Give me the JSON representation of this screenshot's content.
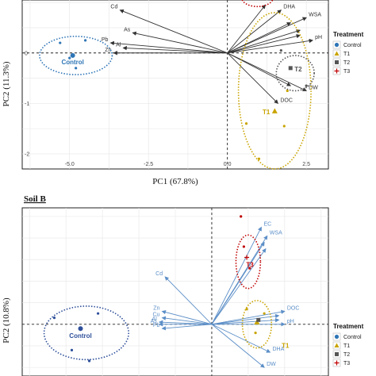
{
  "chart_data": [
    {
      "type": "scatter",
      "panel": "top",
      "title": "",
      "xlabel": "PC1 (67.8%)",
      "ylabel": "PC2 (11.3%)",
      "xlim": [
        -6.5,
        3.2
      ],
      "ylim": [
        -2.3,
        1.05
      ],
      "xticks": [
        -5.0,
        -2.5,
        0.0,
        2.5
      ],
      "xtick_labels": [
        "-5.0",
        "-2.5",
        "0.0",
        "2.5"
      ],
      "yticks": [
        -2,
        -1,
        0
      ],
      "ytick_labels": [
        "-2",
        "-1",
        "0"
      ],
      "grid": true,
      "legend_position": "right",
      "loadings_color": "#333333",
      "loadings": [
        {
          "name": "Cd",
          "x": -3.4,
          "y": 0.85
        },
        {
          "name": "As",
          "x": -3.0,
          "y": 0.4
        },
        {
          "name": "Pb",
          "x": -3.7,
          "y": 0.2
        },
        {
          "name": "Al",
          "x": -3.3,
          "y": 0.1
        },
        {
          "name": "Zn",
          "x": -3.6,
          "y": 0.0
        },
        {
          "name": "DHA",
          "x": 1.7,
          "y": 0.85
        },
        {
          "name": "WSA",
          "x": 2.5,
          "y": 0.7
        },
        {
          "name": "pH",
          "x": 2.7,
          "y": 0.25
        },
        {
          "name": "DW",
          "x": 2.5,
          "y": -0.75
        },
        {
          "name": "DOC",
          "x": 1.6,
          "y": -1.0
        }
      ],
      "extra_vectors": [
        {
          "x": 1.2,
          "y": 0.95
        },
        {
          "x": 2.0,
          "y": 0.6
        },
        {
          "x": 2.3,
          "y": 0.45
        },
        {
          "x": 2.3,
          "y": 0.35
        },
        {
          "x": 2.0,
          "y": -0.65
        }
      ],
      "groups": [
        {
          "name": "Control",
          "label": "Control",
          "color": "#2e75b6",
          "centroid": [
            -4.9,
            -0.05
          ],
          "points": [
            [
              -5.3,
              0.2
            ],
            [
              -4.5,
              0.25
            ],
            [
              -5.0,
              -0.1
            ],
            [
              -4.8,
              -0.3
            ]
          ],
          "ellipse": {
            "cx": -4.8,
            "cy": -0.05,
            "rx": 1.15,
            "ry": 0.38
          }
        },
        {
          "name": "T1",
          "label": "T1",
          "color": "#c9a400",
          "centroid": [
            1.5,
            -1.15
          ],
          "points": [
            [
              1.9,
              -0.75
            ],
            [
              1.8,
              -1.45
            ],
            [
              0.6,
              -1.4
            ],
            [
              1.0,
              -2.1
            ]
          ],
          "ellipse": {
            "cx": 1.5,
            "cy": -0.75,
            "rx": 1.15,
            "ry": 1.55
          }
        },
        {
          "name": "T2",
          "label": "T2",
          "color": "#555555",
          "centroid": [
            2.0,
            -0.3
          ],
          "points": [
            [
              2.5,
              -0.65
            ],
            [
              1.7,
              0.05
            ]
          ],
          "ellipse": {
            "cx": 2.15,
            "cy": -0.4,
            "rx": 0.6,
            "ry": 0.35
          }
        },
        {
          "name": "T3",
          "label": "",
          "color": "#c00000",
          "centroid": [
            1.0,
            1.1
          ],
          "points": [],
          "ellipse": {
            "cx": 0.95,
            "cy": 1.1,
            "rx": 0.5,
            "ry": 0.18
          }
        }
      ]
    },
    {
      "type": "scatter",
      "panel": "bottom",
      "title": "Soil B",
      "xlabel": "",
      "ylabel": "PC2 (10.8%)",
      "xlim": [
        -6.5,
        4.0
      ],
      "ylim": [
        -1.2,
        2.7
      ],
      "grid": true,
      "legend_position": "right",
      "loadings_color": "#5b8ec7",
      "loadings": [
        {
          "name": "EC",
          "x": 1.7,
          "y": 2.25
        },
        {
          "name": "WSA",
          "x": 1.9,
          "y": 2.05
        },
        {
          "name": "Cd",
          "x": -1.6,
          "y": 1.1
        },
        {
          "name": "Zn",
          "x": -1.7,
          "y": 0.3
        },
        {
          "name": "Cu",
          "x": -1.7,
          "y": 0.15
        },
        {
          "name": "Al",
          "x": -1.8,
          "y": 0.05
        },
        {
          "name": "As",
          "x": -1.8,
          "y": 0.0
        },
        {
          "name": "Pb",
          "x": -1.7,
          "y": -0.1
        },
        {
          "name": "DOC",
          "x": 2.5,
          "y": 0.3
        },
        {
          "name": "pH",
          "x": 2.5,
          "y": 0.0
        },
        {
          "name": "DHA",
          "x": 2.0,
          "y": -0.65
        },
        {
          "name": "DW",
          "x": 1.8,
          "y": -1.0
        }
      ],
      "extra_vectors": [
        {
          "x": 1.8,
          "y": 1.9
        },
        {
          "x": 1.85,
          "y": 1.75
        },
        {
          "x": 2.3,
          "y": 0.2
        },
        {
          "x": 2.3,
          "y": 0.1
        }
      ],
      "groups": [
        {
          "name": "Control",
          "label": "Control",
          "color": "#2e4f9a",
          "centroid": [
            -4.5,
            -0.1
          ],
          "points": [
            [
              -5.4,
              0.15
            ],
            [
              -3.9,
              0.25
            ],
            [
              -4.2,
              -0.85
            ],
            [
              -4.8,
              -0.6
            ]
          ],
          "ellipse": {
            "cx": -4.3,
            "cy": -0.2,
            "rx": 1.45,
            "ry": 0.62
          }
        },
        {
          "name": "T1",
          "label": "T1",
          "color": "#c9a400",
          "centroid": [
            1.55,
            0.05
          ],
          "points": [
            [
              1.2,
              0.35
            ],
            [
              1.8,
              0.25
            ],
            [
              1.5,
              -0.2
            ]
          ],
          "ellipse": {
            "cx": 1.55,
            "cy": 0.0,
            "rx": 0.5,
            "ry": 0.55
          }
        },
        {
          "name": "T2",
          "label": "",
          "color": "#555555",
          "centroid": [
            1.6,
            0.1
          ],
          "points": [],
          "ellipse": null
        },
        {
          "name": "T3",
          "label": "T3",
          "color": "#c00000",
          "centroid": [
            1.2,
            1.55
          ],
          "points": [
            [
              1.1,
              1.8
            ],
            [
              1.3,
              1.3
            ],
            [
              1.0,
              2.5
            ]
          ],
          "ellipse": {
            "cx": 1.25,
            "cy": 1.45,
            "rx": 0.42,
            "ry": 0.62
          }
        }
      ]
    }
  ],
  "legend": {
    "title": "Treatment",
    "items": [
      {
        "label": "Control",
        "color": "#2e75b6",
        "shape": "circle"
      },
      {
        "label": "T1",
        "color": "#c9a400",
        "shape": "triangle"
      },
      {
        "label": "T2",
        "color": "#555555",
        "shape": "square"
      },
      {
        "label": "T3",
        "color": "#c00000",
        "shape": "plus"
      }
    ]
  },
  "section_titles": {
    "soil_b": "Soil B"
  }
}
